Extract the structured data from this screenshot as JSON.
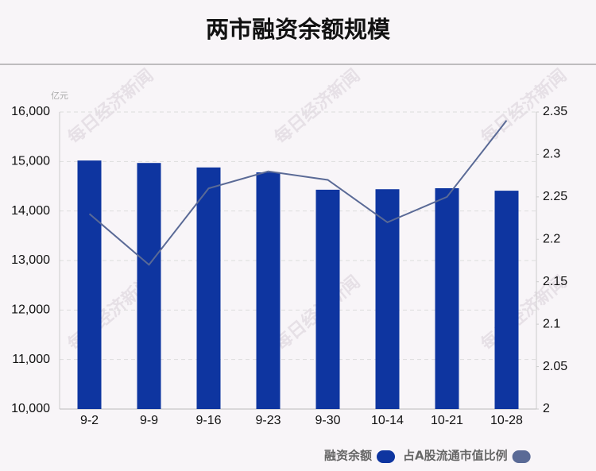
{
  "chart_data": {
    "type": "bar",
    "title": "两市融资余额规模",
    "unit_label": "亿元",
    "watermark": "每日经济新闻",
    "categories": [
      "9-2",
      "9-9",
      "9-16",
      "9-23",
      "9-30",
      "10-14",
      "10-21",
      "10-28"
    ],
    "series": [
      {
        "name": "融资余额",
        "type": "bar",
        "color": "#0e35a0",
        "values": [
          15020,
          14970,
          14880,
          14780,
          14430,
          14440,
          14460,
          14410
        ]
      },
      {
        "name": "占A股流通市值比例",
        "type": "line",
        "axis": "y2",
        "color": "#5a6a96",
        "values": [
          2.23,
          2.17,
          2.26,
          2.28,
          2.27,
          2.22,
          2.25,
          2.34
        ]
      }
    ],
    "ylim": [
      10000,
      16000
    ],
    "yticks": [
      {
        "value": 10000,
        "label": "10,000"
      },
      {
        "value": 11000,
        "label": "11,000"
      },
      {
        "value": 12000,
        "label": "12,000"
      },
      {
        "value": 13000,
        "label": "13,000"
      },
      {
        "value": 14000,
        "label": "14,000"
      },
      {
        "value": 15000,
        "label": "15,000"
      },
      {
        "value": 16000,
        "label": "16,000"
      }
    ],
    "y2lim": [
      2,
      2.35
    ],
    "y2ticks": [
      2,
      2.05,
      2.1,
      2.15,
      2.2,
      2.25,
      2.3,
      2.35
    ],
    "grid": true
  }
}
